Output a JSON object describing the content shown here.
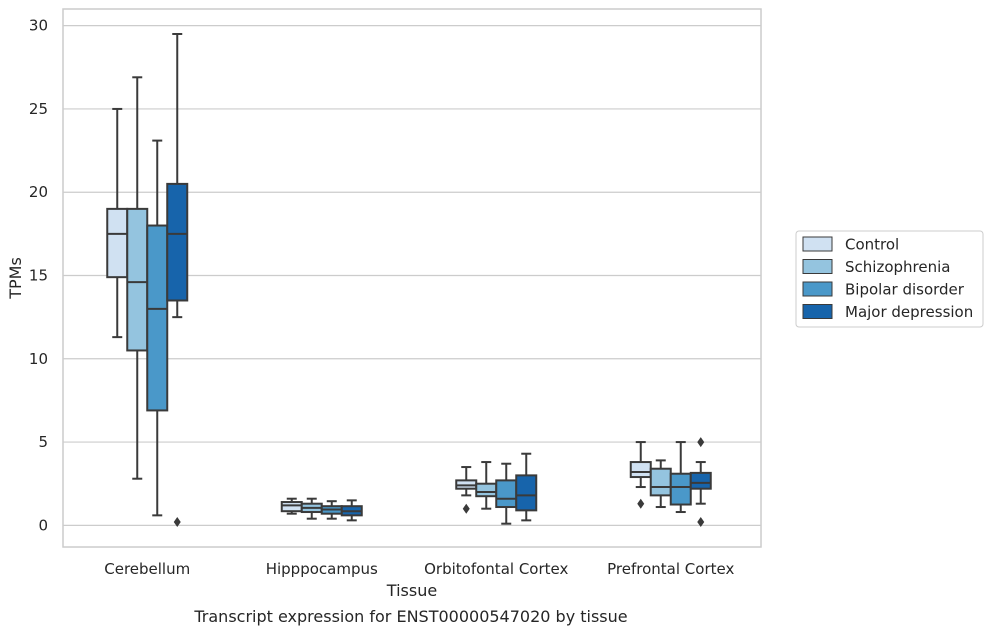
{
  "chart_data": {
    "type": "box",
    "caption": "Transcript expression for ENST00000547020 by tissue",
    "xlabel": "Tissue",
    "ylabel": "TPMs",
    "ylim": [
      -1.3,
      31.0
    ],
    "yticks": [
      0,
      5,
      10,
      15,
      20,
      25,
      30
    ],
    "grid": "horizontal",
    "legend_position": "outside-right",
    "categories": [
      "Cerebellum",
      "Hipppocampus",
      "Orbitofontal Cortex",
      "Prefrontal Cortex"
    ],
    "series": [
      {
        "name": "Control",
        "color": "#d0e1f2",
        "boxes": [
          {
            "whislo": 11.3,
            "q1": 14.9,
            "med": 17.5,
            "q3": 19.0,
            "whishi": 25.0,
            "fliers": []
          },
          {
            "whislo": 0.7,
            "q1": 0.85,
            "med": 1.2,
            "q3": 1.4,
            "whishi": 1.6,
            "fliers": []
          },
          {
            "whislo": 1.8,
            "q1": 2.2,
            "med": 2.4,
            "q3": 2.7,
            "whishi": 3.5,
            "fliers": [
              1.0
            ]
          },
          {
            "whislo": 2.3,
            "q1": 2.9,
            "med": 3.2,
            "q3": 3.8,
            "whishi": 5.0,
            "fliers": [
              1.3
            ]
          }
        ]
      },
      {
        "name": "Schizophrenia",
        "color": "#94c4df",
        "boxes": [
          {
            "whislo": 2.8,
            "q1": 10.5,
            "med": 14.6,
            "q3": 19.0,
            "whishi": 26.9,
            "fliers": []
          },
          {
            "whislo": 0.4,
            "q1": 0.8,
            "med": 1.05,
            "q3": 1.3,
            "whishi": 1.6,
            "fliers": []
          },
          {
            "whislo": 1.0,
            "q1": 1.75,
            "med": 2.0,
            "q3": 2.5,
            "whishi": 3.8,
            "fliers": []
          },
          {
            "whislo": 1.1,
            "q1": 1.8,
            "med": 2.3,
            "q3": 3.4,
            "whishi": 3.9,
            "fliers": []
          }
        ]
      },
      {
        "name": "Bipolar disorder",
        "color": "#4a98c9",
        "boxes": [
          {
            "whislo": 0.6,
            "q1": 6.9,
            "med": 13.0,
            "q3": 18.0,
            "whishi": 23.1,
            "fliers": []
          },
          {
            "whislo": 0.4,
            "q1": 0.7,
            "med": 0.95,
            "q3": 1.15,
            "whishi": 1.45,
            "fliers": []
          },
          {
            "whislo": 0.1,
            "q1": 1.1,
            "med": 1.6,
            "q3": 2.7,
            "whishi": 3.7,
            "fliers": []
          },
          {
            "whislo": 0.8,
            "q1": 1.25,
            "med": 2.3,
            "q3": 3.1,
            "whishi": 5.0,
            "fliers": []
          }
        ]
      },
      {
        "name": "Major depression",
        "color": "#1764ab",
        "boxes": [
          {
            "whislo": 12.5,
            "q1": 13.5,
            "med": 17.5,
            "q3": 20.5,
            "whishi": 29.5,
            "fliers": [
              0.2
            ]
          },
          {
            "whislo": 0.3,
            "q1": 0.6,
            "med": 0.85,
            "q3": 1.15,
            "whishi": 1.5,
            "fliers": []
          },
          {
            "whislo": 0.3,
            "q1": 0.9,
            "med": 1.8,
            "q3": 3.0,
            "whishi": 4.3,
            "fliers": []
          },
          {
            "whislo": 1.3,
            "q1": 2.2,
            "med": 2.55,
            "q3": 3.15,
            "whishi": 3.8,
            "fliers": [
              0.2,
              5.0
            ]
          }
        ]
      }
    ]
  }
}
